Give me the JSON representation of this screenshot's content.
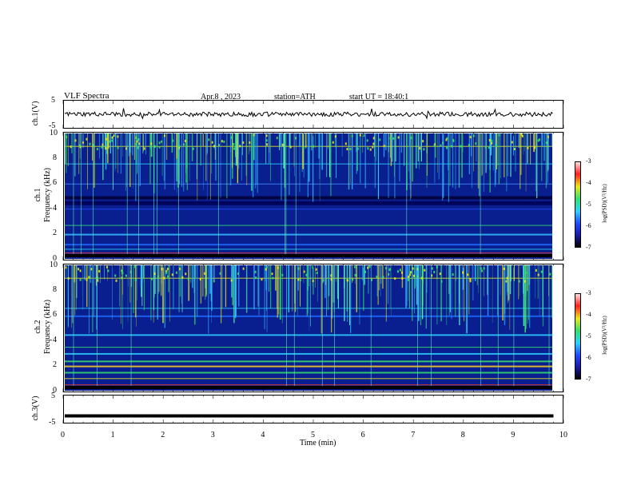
{
  "header": {
    "title": "VLF Spectra",
    "date": "Apr.8 , 2023",
    "station": "station=ATH",
    "start": "start UT = 18:40:1"
  },
  "chart_data": [
    {
      "type": "line",
      "panel": "ch1-waveform",
      "ylabel": "ch.1(V)",
      "yticks": [
        "5",
        "-5"
      ],
      "ylim": [
        -5,
        5
      ],
      "xlim": [
        0,
        10
      ],
      "x_end": 9.8,
      "approx_level": 0
    },
    {
      "type": "heatmap",
      "panel": "ch1-spectrogram",
      "ylabel_channel": "ch.1",
      "ylabel": "Frequency (kHz)",
      "yticks": [
        "0",
        "2",
        "4",
        "6",
        "8",
        "10"
      ],
      "ylim": [
        0,
        10
      ],
      "xlim": [
        0,
        10
      ],
      "colorbar": {
        "label": "log(PSD)(V²/Hz)",
        "ticks": [
          "-3",
          "-4",
          "-5",
          "-6",
          "-7"
        ],
        "range": [
          -7,
          -3
        ]
      }
    },
    {
      "type": "heatmap",
      "panel": "ch2-spectrogram",
      "ylabel_channel": "ch.2",
      "ylabel": "Frequency (kHz)",
      "yticks": [
        "0",
        "2",
        "4",
        "6",
        "8",
        "10"
      ],
      "ylim": [
        0,
        10
      ],
      "xlim": [
        0,
        10
      ],
      "colorbar": {
        "label": "log(PSD)(V²/Hz)",
        "ticks": [
          "-3",
          "-4",
          "-5",
          "-6",
          "-7"
        ],
        "range": [
          -7,
          -3
        ]
      }
    },
    {
      "type": "line",
      "panel": "ch3-waveform",
      "ylabel": "ch.3(V)",
      "yticks": [
        "5",
        "-5"
      ],
      "ylim": [
        -5,
        5
      ],
      "xlim": [
        0,
        10
      ],
      "x_end": 9.8,
      "approx_level": -2.5
    }
  ],
  "xaxis": {
    "label": "Time (min)",
    "ticks": [
      "0",
      "1",
      "2",
      "3",
      "4",
      "5",
      "6",
      "7",
      "8",
      "9",
      "10"
    ]
  },
  "colors": {
    "background_blue": "#0a1f8f",
    "trace": "#000000"
  }
}
